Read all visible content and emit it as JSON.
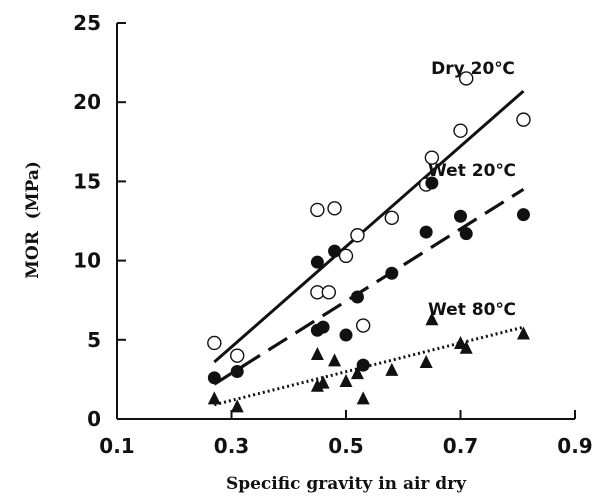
{
  "chart_data": {
    "type": "scatter",
    "title": "",
    "xlabel": "Specific gravity in air dry",
    "ylabel": "MOR  (MPa)",
    "xlim": [
      0.1,
      0.9
    ],
    "ylim": [
      0,
      25
    ],
    "x_ticks": [
      "0.1",
      "0.3",
      "0.5",
      "0.7",
      "0.9"
    ],
    "y_ticks": [
      "0",
      "5",
      "10",
      "15",
      "20",
      "25"
    ],
    "grid": false,
    "series": [
      {
        "name": "Dry 20℃",
        "marker": "open-circle",
        "line_style": "solid",
        "points": [
          [
            0.27,
            4.8
          ],
          [
            0.31,
            4.0
          ],
          [
            0.45,
            13.2
          ],
          [
            0.48,
            13.3
          ],
          [
            0.45,
            8.0
          ],
          [
            0.47,
            8.0
          ],
          [
            0.5,
            10.3
          ],
          [
            0.52,
            11.6
          ],
          [
            0.53,
            5.9
          ],
          [
            0.58,
            12.7
          ],
          [
            0.64,
            14.8
          ],
          [
            0.65,
            16.5
          ],
          [
            0.7,
            18.2
          ],
          [
            0.71,
            21.5
          ],
          [
            0.81,
            18.9
          ]
        ],
        "fit": [
          [
            0.27,
            3.6
          ],
          [
            0.81,
            20.7
          ]
        ]
      },
      {
        "name": "Wet 20℃",
        "marker": "filled-circle",
        "line_style": "dashed",
        "points": [
          [
            0.27,
            2.6
          ],
          [
            0.31,
            3.0
          ],
          [
            0.45,
            9.9
          ],
          [
            0.48,
            10.6
          ],
          [
            0.45,
            5.6
          ],
          [
            0.46,
            5.8
          ],
          [
            0.5,
            5.3
          ],
          [
            0.52,
            7.7
          ],
          [
            0.53,
            3.4
          ],
          [
            0.58,
            9.2
          ],
          [
            0.64,
            11.8
          ],
          [
            0.65,
            14.9
          ],
          [
            0.7,
            12.8
          ],
          [
            0.71,
            11.7
          ],
          [
            0.81,
            12.9
          ]
        ],
        "fit": [
          [
            0.27,
            2.2
          ],
          [
            0.81,
            14.5
          ]
        ]
      },
      {
        "name": "Wet 80℃",
        "marker": "filled-triangle",
        "line_style": "dotted",
        "points": [
          [
            0.27,
            1.3
          ],
          [
            0.31,
            0.8
          ],
          [
            0.45,
            4.1
          ],
          [
            0.45,
            2.1
          ],
          [
            0.46,
            2.3
          ],
          [
            0.48,
            3.7
          ],
          [
            0.5,
            2.4
          ],
          [
            0.52,
            2.9
          ],
          [
            0.53,
            1.3
          ],
          [
            0.58,
            3.1
          ],
          [
            0.64,
            3.6
          ],
          [
            0.65,
            6.3
          ],
          [
            0.7,
            4.8
          ],
          [
            0.71,
            4.5
          ],
          [
            0.81,
            5.4
          ]
        ],
        "fit": [
          [
            0.27,
            0.9
          ],
          [
            0.81,
            5.8
          ]
        ]
      }
    ],
    "annotations": [
      "Dry 20℃",
      "Wet 20℃",
      "Wet 80℃"
    ]
  }
}
